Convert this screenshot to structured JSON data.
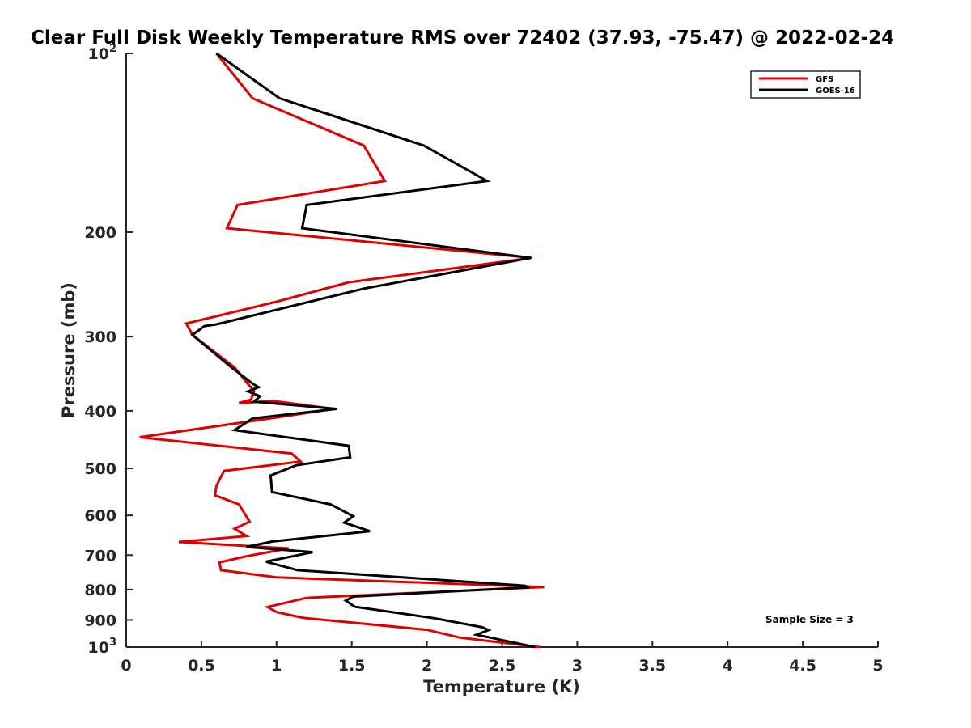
{
  "chart_data": {
    "type": "line",
    "title": "Clear Full Disk Weekly Temperature RMS over 72402 (37.93, -75.47) @ 2022-02-24",
    "xlabel": "Temperature (K)",
    "ylabel": "Pressure (mb)",
    "xlim": [
      0,
      5
    ],
    "ylim": [
      100,
      1000
    ],
    "y_scale": "log",
    "y_reversed": true,
    "grid": false,
    "legend_position": "top-right",
    "x_ticks": [
      "0",
      "0.5",
      "1",
      "1.5",
      "2",
      "2.5",
      "3",
      "3.5",
      "4",
      "4.5",
      "5"
    ],
    "y_ticks": [
      {
        "value": 100,
        "label": "10",
        "sup": "2"
      },
      {
        "value": 200,
        "label": "200",
        "sup": ""
      },
      {
        "value": 300,
        "label": "300",
        "sup": ""
      },
      {
        "value": 400,
        "label": "400",
        "sup": ""
      },
      {
        "value": 500,
        "label": "500",
        "sup": ""
      },
      {
        "value": 600,
        "label": "600",
        "sup": ""
      },
      {
        "value": 700,
        "label": "700",
        "sup": ""
      },
      {
        "value": 800,
        "label": "800",
        "sup": ""
      },
      {
        "value": 900,
        "label": "900",
        "sup": ""
      },
      {
        "value": 1000,
        "label": "10",
        "sup": "3"
      }
    ],
    "series": [
      {
        "name": "GFS",
        "color": "#e00000",
        "points": [
          [
            0.6,
            100
          ],
          [
            0.84,
            119
          ],
          [
            1.58,
            143
          ],
          [
            1.72,
            164
          ],
          [
            0.74,
            180
          ],
          [
            0.67,
            197
          ],
          [
            2.7,
            221
          ],
          [
            1.48,
            243
          ],
          [
            1.0,
            262
          ],
          [
            0.4,
            285
          ],
          [
            0.44,
            298
          ],
          [
            0.72,
            338
          ],
          [
            0.8,
            358
          ],
          [
            0.85,
            370
          ],
          [
            0.83,
            383
          ],
          [
            0.75,
            388
          ],
          [
            0.98,
            385
          ],
          [
            1.38,
            397
          ],
          [
            0.9,
            414
          ],
          [
            0.09,
            443
          ],
          [
            1.1,
            472
          ],
          [
            1.16,
            487
          ],
          [
            0.65,
            505
          ],
          [
            0.6,
            535
          ],
          [
            0.59,
            555
          ],
          [
            0.75,
            575
          ],
          [
            0.82,
            615
          ],
          [
            0.72,
            632
          ],
          [
            0.8,
            650
          ],
          [
            0.35,
            665
          ],
          [
            1.08,
            682
          ],
          [
            0.8,
            703
          ],
          [
            0.62,
            720
          ],
          [
            0.63,
            742
          ],
          [
            1.0,
            763
          ],
          [
            2.78,
            792
          ],
          [
            1.2,
            826
          ],
          [
            0.94,
            856
          ],
          [
            1.0,
            873
          ],
          [
            1.18,
            893
          ],
          [
            2.0,
            935
          ],
          [
            2.22,
            964
          ],
          [
            2.75,
            1000
          ]
        ]
      },
      {
        "name": "GOES-16",
        "color": "#000000",
        "points": [
          [
            0.6,
            100
          ],
          [
            1.02,
            119
          ],
          [
            1.98,
            143
          ],
          [
            2.4,
            164
          ],
          [
            1.2,
            180
          ],
          [
            1.17,
            197
          ],
          [
            2.69,
            221
          ],
          [
            1.58,
            249
          ],
          [
            0.6,
            286
          ],
          [
            0.52,
            288
          ],
          [
            0.44,
            298
          ],
          [
            0.7,
            338
          ],
          [
            0.84,
            360
          ],
          [
            0.88,
            365
          ],
          [
            0.81,
            371
          ],
          [
            0.89,
            378
          ],
          [
            0.85,
            386
          ],
          [
            1.4,
            397
          ],
          [
            0.84,
            412
          ],
          [
            0.72,
            431
          ],
          [
            1.48,
            458
          ],
          [
            1.49,
            479
          ],
          [
            1.13,
            494
          ],
          [
            0.96,
            514
          ],
          [
            0.97,
            548
          ],
          [
            1.36,
            575
          ],
          [
            1.51,
            602
          ],
          [
            1.45,
            617
          ],
          [
            1.62,
            638
          ],
          [
            0.97,
            664
          ],
          [
            0.8,
            678
          ],
          [
            1.24,
            692
          ],
          [
            0.93,
            718
          ],
          [
            1.14,
            742
          ],
          [
            2.65,
            788
          ],
          [
            2.68,
            793
          ],
          [
            1.51,
            822
          ],
          [
            1.46,
            835
          ],
          [
            1.52,
            855
          ],
          [
            2.05,
            894
          ],
          [
            2.37,
            926
          ],
          [
            2.41,
            936
          ],
          [
            2.33,
            953
          ],
          [
            2.72,
            1000
          ]
        ]
      }
    ],
    "annotations": [
      "Sample Size = 3"
    ]
  }
}
